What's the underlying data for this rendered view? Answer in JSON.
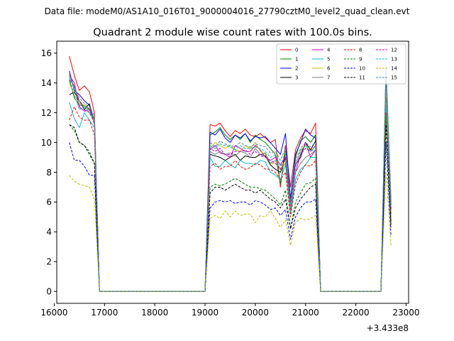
{
  "suptitle": "Data file: modeM0/AS1A10_016T01_9000004016_27790cztM0_level2_quad_clean.evt",
  "chart_data": {
    "type": "line",
    "title": "Quadrant 2 module wise count rates with 100.0s bins.",
    "xlabel": "",
    "ylabel": "",
    "x_offset_label": "+3.433e8",
    "x_offset": 343300000,
    "xlim": [
      343316050,
      343323050
    ],
    "ylim": [
      -0.8,
      16.8
    ],
    "xticks": [
      343316000,
      343317000,
      343318000,
      343319000,
      343320000,
      343321000,
      343322000,
      343323000
    ],
    "xtick_labels": [
      "16000",
      "17000",
      "18000",
      "19000",
      "20000",
      "21000",
      "22000",
      "23000"
    ],
    "yticks": [
      0,
      2,
      4,
      6,
      8,
      10,
      12,
      14,
      16
    ],
    "ytick_labels": [
      "0",
      "2",
      "4",
      "6",
      "8",
      "10",
      "12",
      "14",
      "16"
    ],
    "grid": false,
    "legend_position": "top-right",
    "legend_columns": 4,
    "x": [
      343316300,
      343316400,
      343316500,
      343316600,
      343316700,
      343316800,
      343316900,
      343317000,
      343317100,
      343317200,
      343317300,
      343317400,
      343317500,
      343317600,
      343317700,
      343317800,
      343317900,
      343318000,
      343318100,
      343318200,
      343318300,
      343318400,
      343318500,
      343318600,
      343318700,
      343318800,
      343318900,
      343319000,
      343319100,
      343319200,
      343319300,
      343319400,
      343319500,
      343319600,
      343319700,
      343319800,
      343319900,
      343320000,
      343320100,
      343320200,
      343320300,
      343320400,
      343320500,
      343320600,
      343320700,
      343320800,
      343320900,
      343321000,
      343321100,
      343321200,
      343321300,
      343321400,
      343321500,
      343321600,
      343321700,
      343321800,
      343321900,
      343322000,
      343322100,
      343322200,
      343322300,
      343322400,
      343322500,
      343322600,
      343322700
    ],
    "series": [
      {
        "name": "0",
        "color": "#ff0000",
        "dash": false,
        "values": [
          15.8,
          14.5,
          13.5,
          13.8,
          13.4,
          12.0,
          0,
          0,
          0,
          0,
          0,
          0,
          0,
          0,
          0,
          0,
          0,
          0,
          0,
          0,
          0,
          0,
          0,
          0,
          0,
          0,
          0,
          0,
          11.2,
          11.1,
          11.3,
          10.8,
          10.4,
          10.8,
          10.6,
          10.9,
          10.5,
          10.4,
          10.6,
          10.3,
          10.0,
          10.2,
          7.0,
          9.8,
          7.0,
          9.5,
          10.3,
          10.8,
          10.6,
          11.3,
          0,
          0,
          0,
          0,
          0,
          0,
          0,
          0,
          0,
          0,
          0,
          0,
          0,
          15.1,
          6.0
        ]
      },
      {
        "name": "1",
        "color": "#008000",
        "dash": false,
        "values": [
          14.2,
          13.0,
          12.5,
          12.5,
          12.2,
          11.6,
          0,
          0,
          0,
          0,
          0,
          0,
          0,
          0,
          0,
          0,
          0,
          0,
          0,
          0,
          0,
          0,
          0,
          0,
          0,
          0,
          0,
          0,
          10.5,
          10.7,
          11.0,
          10.5,
          10.2,
          10.5,
          10.2,
          10.6,
          10.0,
          10.5,
          10.2,
          10.0,
          9.6,
          9.2,
          7.2,
          9.4,
          6.0,
          9.0,
          10.1,
          10.4,
          10.0,
          10.5,
          0,
          0,
          0,
          0,
          0,
          0,
          0,
          0,
          0,
          0,
          0,
          0,
          0,
          14.0,
          5.5
        ]
      },
      {
        "name": "2",
        "color": "#0000ff",
        "dash": false,
        "values": [
          14.8,
          13.5,
          13.2,
          12.8,
          12.5,
          11.5,
          0,
          0,
          0,
          0,
          0,
          0,
          0,
          0,
          0,
          0,
          0,
          0,
          0,
          0,
          0,
          0,
          0,
          0,
          0,
          0,
          0,
          0,
          10.7,
          10.5,
          10.9,
          10.3,
          10.0,
          10.5,
          10.3,
          10.6,
          10.1,
          10.4,
          10.3,
          10.4,
          10.0,
          9.6,
          9.2,
          10.6,
          6.2,
          9.2,
          10.0,
          10.9,
          10.5,
          10.3,
          0,
          0,
          0,
          0,
          0,
          0,
          0,
          0,
          0,
          0,
          0,
          0,
          0,
          14.5,
          5.8
        ]
      },
      {
        "name": "3",
        "color": "#000000",
        "dash": false,
        "values": [
          13.2,
          13.4,
          12.8,
          12.2,
          12.6,
          11.2,
          0,
          0,
          0,
          0,
          0,
          0,
          0,
          0,
          0,
          0,
          0,
          0,
          0,
          0,
          0,
          0,
          0,
          0,
          0,
          0,
          0,
          0,
          9.2,
          9.1,
          9.0,
          8.8,
          9.0,
          9.2,
          8.8,
          9.1,
          9.0,
          9.0,
          9.2,
          9.1,
          8.5,
          8.2,
          8.0,
          9.0,
          5.8,
          8.5,
          9.0,
          10.0,
          9.5,
          10.1,
          0,
          0,
          0,
          0,
          0,
          0,
          0,
          0,
          0,
          0,
          0,
          0,
          0,
          13.2,
          5.2
        ]
      },
      {
        "name": "4",
        "color": "#bf00bf",
        "dash": false,
        "values": [
          14.5,
          14.0,
          12.4,
          12.1,
          12.2,
          11.3,
          0,
          0,
          0,
          0,
          0,
          0,
          0,
          0,
          0,
          0,
          0,
          0,
          0,
          0,
          0,
          0,
          0,
          0,
          0,
          0,
          0,
          0,
          9.5,
          9.8,
          9.3,
          9.2,
          9.0,
          9.8,
          9.6,
          9.4,
          9.4,
          9.8,
          9.5,
          9.0,
          8.8,
          9.0,
          8.5,
          9.0,
          5.5,
          8.0,
          9.2,
          10.0,
          9.0,
          9.5,
          0,
          0,
          0,
          0,
          0,
          0,
          0,
          0,
          0,
          0,
          0,
          0,
          0,
          14.2,
          5.4
        ]
      },
      {
        "name": "5",
        "color": "#00bfbf",
        "dash": false,
        "values": [
          12.7,
          11.6,
          11.0,
          12.0,
          11.5,
          11.0,
          0,
          0,
          0,
          0,
          0,
          0,
          0,
          0,
          0,
          0,
          0,
          0,
          0,
          0,
          0,
          0,
          0,
          0,
          0,
          0,
          0,
          0,
          9.0,
          8.4,
          8.4,
          8.8,
          8.5,
          8.3,
          8.8,
          8.6,
          8.6,
          8.5,
          8.8,
          8.7,
          8.0,
          7.8,
          7.5,
          8.5,
          5.2,
          7.5,
          8.2,
          8.5,
          9.0,
          9.0,
          0,
          0,
          0,
          0,
          0,
          0,
          0,
          0,
          0,
          0,
          0,
          0,
          0,
          12.7,
          4.8
        ]
      },
      {
        "name": "6",
        "color": "#bfbf00",
        "dash": false,
        "values": [
          14.0,
          13.2,
          12.6,
          12.5,
          12.0,
          11.4,
          0,
          0,
          0,
          0,
          0,
          0,
          0,
          0,
          0,
          0,
          0,
          0,
          0,
          0,
          0,
          0,
          0,
          0,
          0,
          0,
          0,
          0,
          9.6,
          10.0,
          9.8,
          9.6,
          9.8,
          9.5,
          9.4,
          9.8,
          9.6,
          10.0,
          9.4,
          9.2,
          8.6,
          8.6,
          8.2,
          8.8,
          5.6,
          8.5,
          9.5,
          9.8,
          9.4,
          9.8,
          0,
          0,
          0,
          0,
          0,
          0,
          0,
          0,
          0,
          0,
          0,
          0,
          0,
          13.8,
          5.3
        ]
      },
      {
        "name": "7",
        "color": "#808080",
        "dash": false,
        "values": [
          14.3,
          13.8,
          12.8,
          12.4,
          12.3,
          11.6,
          0,
          0,
          0,
          0,
          0,
          0,
          0,
          0,
          0,
          0,
          0,
          0,
          0,
          0,
          0,
          0,
          0,
          0,
          0,
          0,
          0,
          0,
          9.4,
          9.2,
          9.4,
          9.2,
          9.3,
          9.1,
          9.4,
          9.3,
          9.0,
          9.6,
          9.2,
          9.3,
          8.6,
          8.8,
          8.2,
          8.6,
          5.4,
          8.0,
          8.6,
          9.0,
          9.2,
          9.5,
          0,
          0,
          0,
          0,
          0,
          0,
          0,
          0,
          0,
          0,
          0,
          0,
          0,
          14.6,
          5.5
        ]
      },
      {
        "name": "8",
        "color": "#ff0000",
        "dash": true,
        "values": [
          11.5,
          12.4,
          11.7,
          11.5,
          11.5,
          10.5,
          0,
          0,
          0,
          0,
          0,
          0,
          0,
          0,
          0,
          0,
          0,
          0,
          0,
          0,
          0,
          0,
          0,
          0,
          0,
          0,
          0,
          0,
          8.4,
          8.6,
          8.2,
          8.4,
          8.4,
          8.8,
          8.4,
          8.2,
          8.3,
          8.6,
          8.5,
          8.2,
          8.2,
          8.0,
          7.5,
          8.0,
          5.0,
          7.2,
          8.0,
          8.5,
          8.4,
          8.8,
          0,
          0,
          0,
          0,
          0,
          0,
          0,
          0,
          0,
          0,
          0,
          0,
          0,
          12.0,
          4.6
        ]
      },
      {
        "name": "9",
        "color": "#008000",
        "dash": true,
        "values": [
          11.2,
          10.8,
          10.0,
          9.8,
          9.4,
          8.6,
          0,
          0,
          0,
          0,
          0,
          0,
          0,
          0,
          0,
          0,
          0,
          0,
          0,
          0,
          0,
          0,
          0,
          0,
          0,
          0,
          0,
          0,
          7.0,
          7.2,
          7.1,
          7.2,
          7.4,
          7.6,
          7.4,
          7.2,
          7.0,
          7.0,
          6.9,
          6.8,
          6.5,
          6.2,
          5.8,
          6.8,
          4.2,
          6.0,
          6.6,
          7.2,
          7.3,
          7.6,
          0,
          0,
          0,
          0,
          0,
          0,
          0,
          0,
          0,
          0,
          0,
          0,
          0,
          11.8,
          4.5
        ]
      },
      {
        "name": "10",
        "color": "#0000ff",
        "dash": true,
        "values": [
          10.0,
          8.8,
          8.8,
          8.4,
          7.8,
          7.8,
          0,
          0,
          0,
          0,
          0,
          0,
          0,
          0,
          0,
          0,
          0,
          0,
          0,
          0,
          0,
          0,
          0,
          0,
          0,
          0,
          0,
          0,
          5.6,
          6.0,
          6.1,
          6.0,
          6.1,
          5.9,
          6.0,
          6.0,
          5.8,
          6.1,
          6.0,
          5.8,
          5.5,
          5.6,
          5.1,
          5.5,
          3.5,
          5.0,
          5.6,
          6.0,
          6.0,
          6.2,
          0,
          0,
          0,
          0,
          0,
          0,
          0,
          0,
          0,
          0,
          0,
          0,
          0,
          10.0,
          3.7
        ]
      },
      {
        "name": "11",
        "color": "#000000",
        "dash": true,
        "values": [
          11.2,
          11.0,
          10.0,
          9.8,
          9.2,
          8.6,
          0,
          0,
          0,
          0,
          0,
          0,
          0,
          0,
          0,
          0,
          0,
          0,
          0,
          0,
          0,
          0,
          0,
          0,
          0,
          0,
          0,
          0,
          6.6,
          7.0,
          7.0,
          6.8,
          7.0,
          7.2,
          7.0,
          6.8,
          6.8,
          6.6,
          6.8,
          6.5,
          6.2,
          6.0,
          5.6,
          6.2,
          4.2,
          5.6,
          6.2,
          6.6,
          7.0,
          7.2,
          0,
          0,
          0,
          0,
          0,
          0,
          0,
          0,
          0,
          0,
          0,
          0,
          0,
          11.2,
          4.3
        ]
      },
      {
        "name": "12",
        "color": "#bf00bf",
        "dash": true,
        "values": [
          14.2,
          13.8,
          12.3,
          12.2,
          12.0,
          11.3,
          0,
          0,
          0,
          0,
          0,
          0,
          0,
          0,
          0,
          0,
          0,
          0,
          0,
          0,
          0,
          0,
          0,
          0,
          0,
          0,
          0,
          0,
          9.6,
          9.4,
          9.6,
          9.2,
          9.2,
          9.4,
          9.4,
          9.5,
          9.2,
          9.4,
          9.1,
          9.0,
          8.8,
          8.6,
          8.2,
          9.1,
          5.7,
          8.4,
          9.2,
          9.6,
          9.4,
          9.8,
          0,
          0,
          0,
          0,
          0,
          0,
          0,
          0,
          0,
          0,
          0,
          0,
          0,
          14.8,
          5.6
        ]
      },
      {
        "name": "13",
        "color": "#00bfbf",
        "dash": true,
        "values": [
          14.4,
          13.2,
          12.2,
          12.4,
          12.0,
          11.6,
          0,
          0,
          0,
          0,
          0,
          0,
          0,
          0,
          0,
          0,
          0,
          0,
          0,
          0,
          0,
          0,
          0,
          0,
          0,
          0,
          0,
          0,
          9.8,
          9.6,
          9.9,
          9.8,
          9.7,
          9.5,
          9.8,
          9.6,
          9.6,
          9.7,
          9.6,
          9.4,
          9.0,
          9.2,
          8.4,
          9.4,
          5.8,
          8.6,
          9.4,
          9.8,
          9.4,
          9.6,
          0,
          0,
          0,
          0,
          0,
          0,
          0,
          0,
          0,
          0,
          0,
          0,
          0,
          15.4,
          5.8
        ]
      },
      {
        "name": "14",
        "color": "#bfbf00",
        "dash": true,
        "values": [
          7.8,
          7.4,
          7.2,
          7.1,
          7.0,
          6.2,
          0,
          0,
          0,
          0,
          0,
          0,
          0,
          0,
          0,
          0,
          0,
          0,
          0,
          0,
          0,
          0,
          0,
          0,
          0,
          0,
          0,
          0,
          4.9,
          5.1,
          4.9,
          5.4,
          5.0,
          5.4,
          5.1,
          5.2,
          5.2,
          4.6,
          5.1,
          5.0,
          5.4,
          4.9,
          4.3,
          4.8,
          3.1,
          4.6,
          4.9,
          4.8,
          4.9,
          5.1,
          0,
          0,
          0,
          0,
          0,
          0,
          0,
          0,
          0,
          0,
          0,
          0,
          0,
          8.0,
          3.1
        ]
      },
      {
        "name": "15",
        "color": "#4d7fa6",
        "dash": true,
        "values": [
          14.6,
          13.6,
          13.0,
          12.6,
          12.4,
          11.8,
          0,
          0,
          0,
          0,
          0,
          0,
          0,
          0,
          0,
          0,
          0,
          0,
          0,
          0,
          0,
          0,
          0,
          0,
          0,
          0,
          0,
          0,
          10.0,
          9.7,
          10.1,
          9.9,
          9.8,
          9.7,
          10.0,
          9.8,
          9.7,
          9.9,
          9.8,
          9.7,
          9.3,
          9.4,
          8.8,
          9.6,
          6.0,
          8.8,
          9.6,
          10.0,
          9.7,
          10.0,
          0,
          0,
          0,
          0,
          0,
          0,
          0,
          0,
          0,
          0,
          0,
          0,
          0,
          15.0,
          6.2
        ]
      }
    ]
  }
}
